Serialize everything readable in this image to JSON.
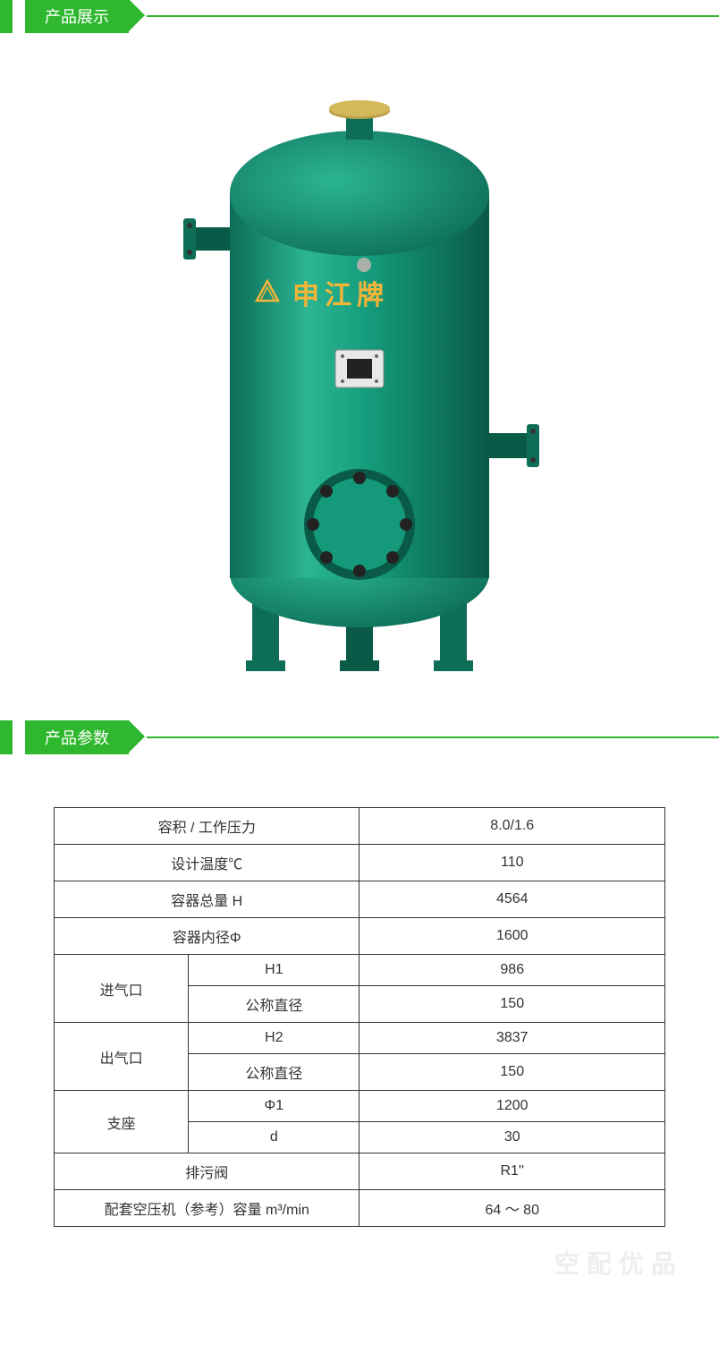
{
  "sections": {
    "showcase_title": "产品展示",
    "params_title": "产品参数"
  },
  "colors": {
    "accent": "#2fb82f",
    "tank_body": "#149a7a",
    "tank_body_hilite": "#2bb593",
    "tank_dark": "#0d6d57",
    "tank_trim": "#0a5a48",
    "tank_label": "#f5b638",
    "border": "#333333",
    "text": "#333333",
    "watermark": "#eeeeee",
    "background": "#ffffff"
  },
  "tank": {
    "brand_text": "申江牌"
  },
  "params_table": {
    "rows": [
      {
        "label_span": 2,
        "label": "容积 / 工作压力",
        "value": "8.0/1.6"
      },
      {
        "label_span": 2,
        "label": "设计温度℃",
        "value": "110"
      },
      {
        "label_span": 2,
        "label": "容器总量 H",
        "value": "4564"
      },
      {
        "label_span": 2,
        "label": "容器内径Φ",
        "value": "1600"
      },
      {
        "group": "进气口",
        "group_rowspan": 2,
        "sub": "H1",
        "value": "986"
      },
      {
        "sub": "公称直径",
        "value": "150"
      },
      {
        "group": "出气口",
        "group_rowspan": 2,
        "sub": "H2",
        "value": "3837"
      },
      {
        "sub": "公称直径",
        "value": "150"
      },
      {
        "group": "支座",
        "group_rowspan": 2,
        "sub": "Φ1",
        "value": "1200"
      },
      {
        "sub": "d",
        "value": "30"
      },
      {
        "label_span": 2,
        "label": "排污阀",
        "value": "R1''"
      },
      {
        "label_span": 2,
        "label": "配套空压机（参考）容量 m³/min",
        "value": "64 ～ 80"
      }
    ]
  },
  "watermark_text": "空配优品",
  "typography": {
    "header_fontsize": 18,
    "table_fontsize": 16,
    "brand_fontsize": 30
  }
}
